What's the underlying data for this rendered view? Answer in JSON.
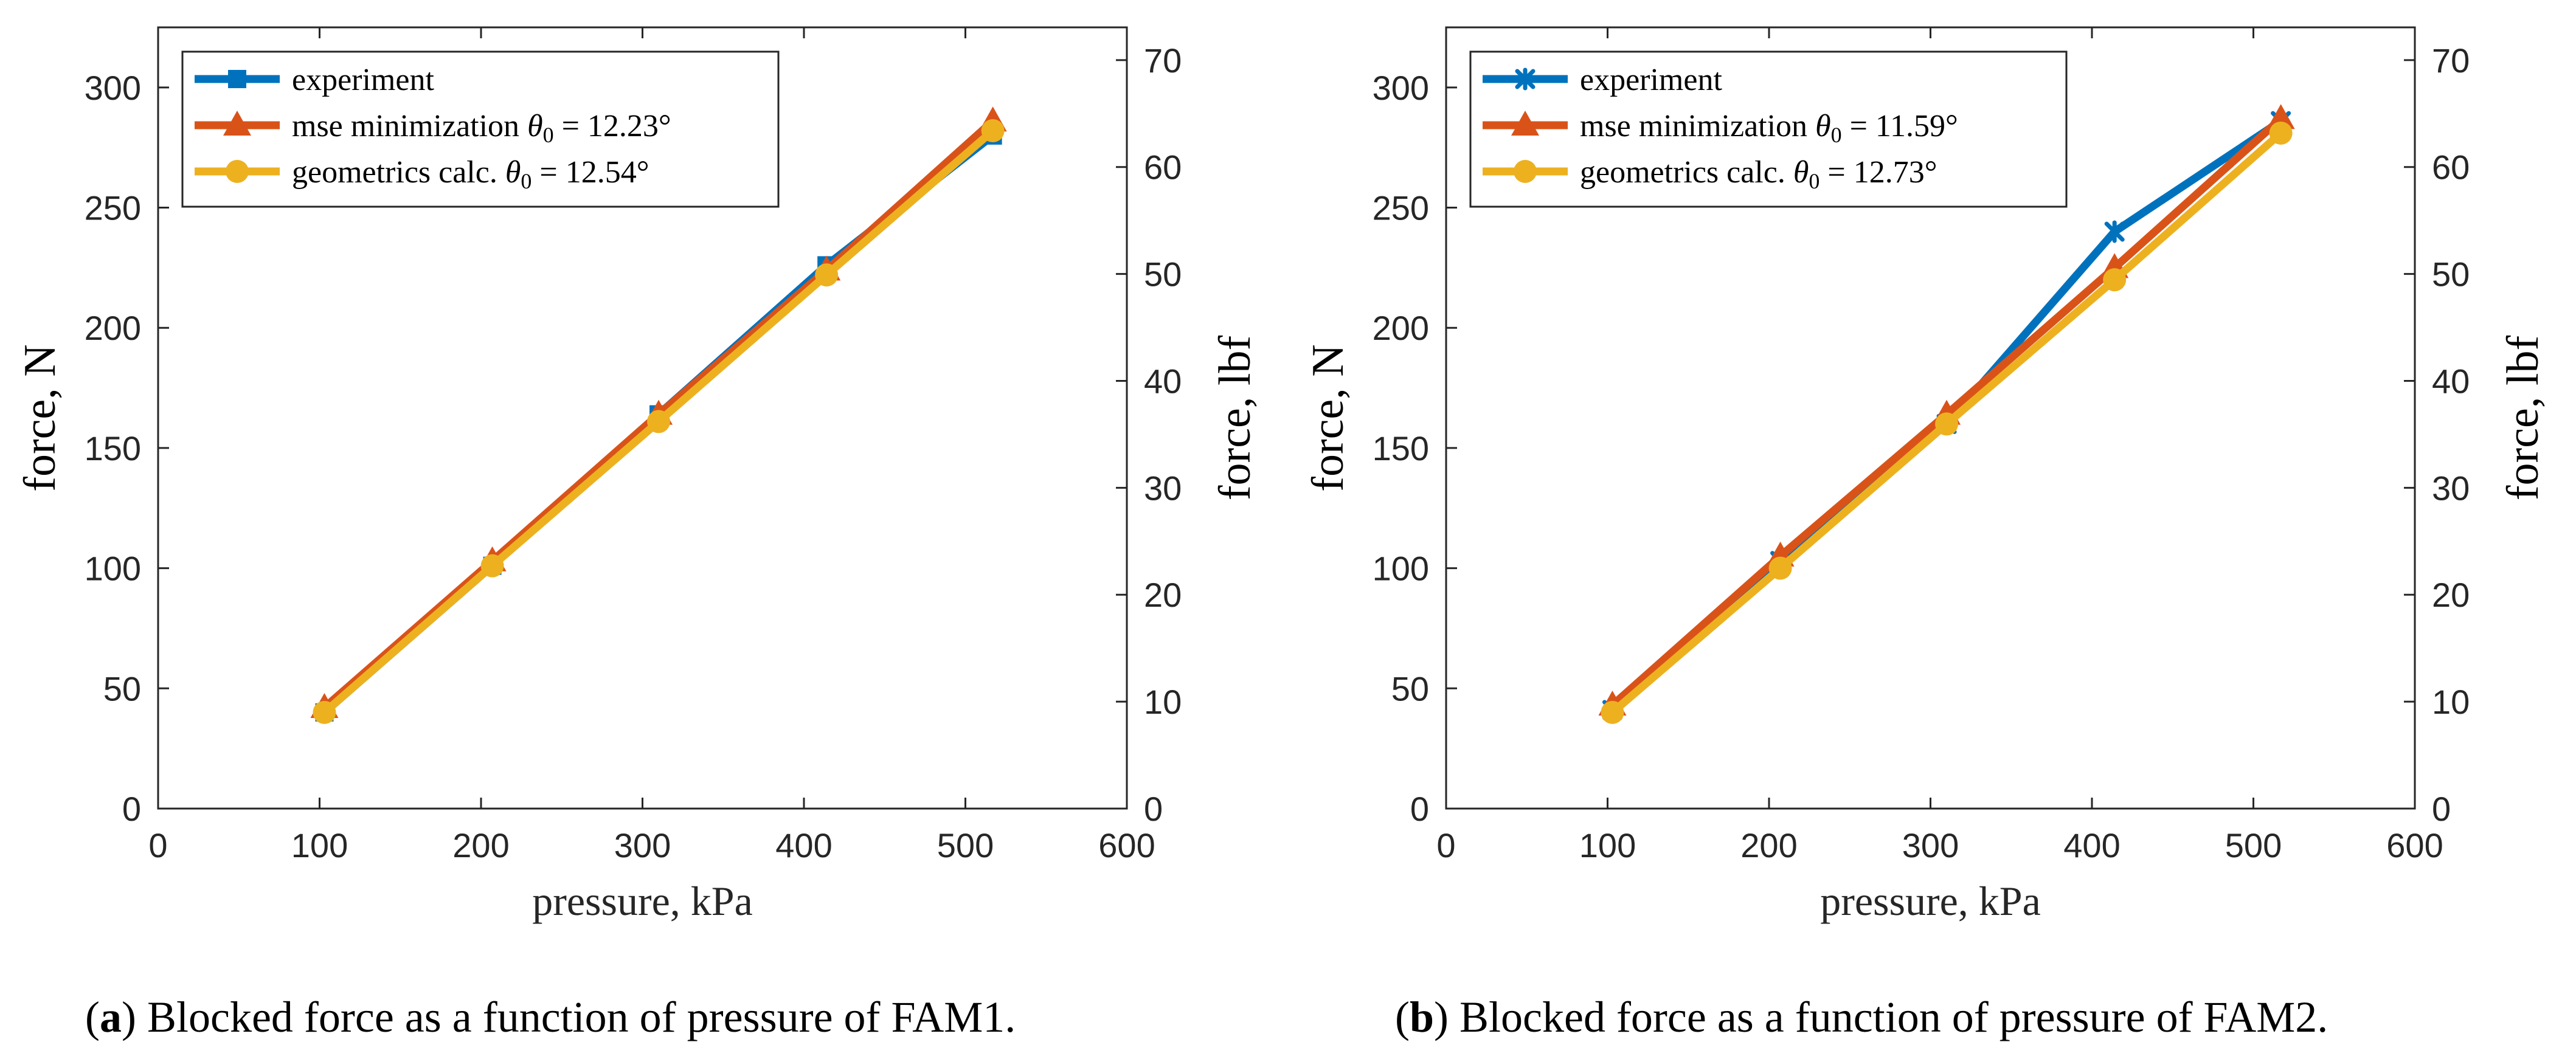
{
  "chart_data": [
    {
      "type": "line",
      "panel_id": "a",
      "xlabel": "pressure, kPa",
      "ylabel": "force, N",
      "y2label": "force, lbf",
      "xlim": [
        0,
        600
      ],
      "ylim": [
        0,
        325
      ],
      "y2lim": [
        0,
        73.06
      ],
      "xticks": [
        0,
        100,
        200,
        300,
        400,
        500,
        600
      ],
      "yticks": [
        0,
        50,
        100,
        150,
        200,
        250,
        300
      ],
      "y2ticks": [
        0,
        10,
        20,
        30,
        40,
        50,
        60,
        70
      ],
      "legend_position": "top-left",
      "x": [
        103,
        207,
        310,
        414,
        517
      ],
      "series": [
        {
          "name": "experiment",
          "label_text": "experiment",
          "theta_text": "",
          "color": "#0072BD",
          "marker": "square",
          "values": [
            40,
            101,
            164,
            226,
            280
          ]
        },
        {
          "name": "mse minimization θ0 = 12.23°",
          "label_text": "mse minimization ",
          "theta_text": " = 12.23°",
          "color": "#D95319",
          "marker": "triangle",
          "values": [
            42,
            103,
            164,
            224,
            286
          ]
        },
        {
          "name": "geometrics calc. θ0 = 12.54°",
          "label_text": "geometrics calc. ",
          "theta_text": " = 12.54°",
          "color": "#EDB120",
          "marker": "circle",
          "values": [
            40,
            101,
            161,
            222,
            282
          ]
        }
      ]
    },
    {
      "type": "line",
      "panel_id": "b",
      "xlabel": "pressure, kPa",
      "ylabel": "force, N",
      "y2label": "force, lbf",
      "xlim": [
        0,
        600
      ],
      "ylim": [
        0,
        325
      ],
      "y2lim": [
        0,
        73.06
      ],
      "xticks": [
        0,
        100,
        200,
        300,
        400,
        500,
        600
      ],
      "yticks": [
        0,
        50,
        100,
        150,
        200,
        250,
        300
      ],
      "y2ticks": [
        0,
        10,
        20,
        30,
        40,
        50,
        60,
        70
      ],
      "legend_position": "top-left",
      "x": [
        103,
        207,
        310,
        414,
        517
      ],
      "series": [
        {
          "name": "experiment",
          "label_text": "experiment",
          "theta_text": "",
          "color": "#0072BD",
          "marker": "star",
          "values": [
            41,
            103,
            160,
            240,
            286
          ]
        },
        {
          "name": "mse minimization θ0 = 11.59°",
          "label_text": "mse minimization ",
          "theta_text": " = 11.59°",
          "color": "#D95319",
          "marker": "triangle",
          "values": [
            43,
            105,
            164,
            225,
            287
          ]
        },
        {
          "name": "geometrics calc. θ0 = 12.73°",
          "label_text": "geometrics calc. ",
          "theta_text": " = 12.73°",
          "color": "#EDB120",
          "marker": "circle",
          "values": [
            40,
            100,
            160,
            220,
            281
          ]
        }
      ]
    }
  ],
  "captions": {
    "a": {
      "letter": "a",
      "text": " Blocked force as a function of pressure of FAM1."
    },
    "b": {
      "letter": "b",
      "text": " Blocked force as a function of pressure of FAM2."
    }
  }
}
